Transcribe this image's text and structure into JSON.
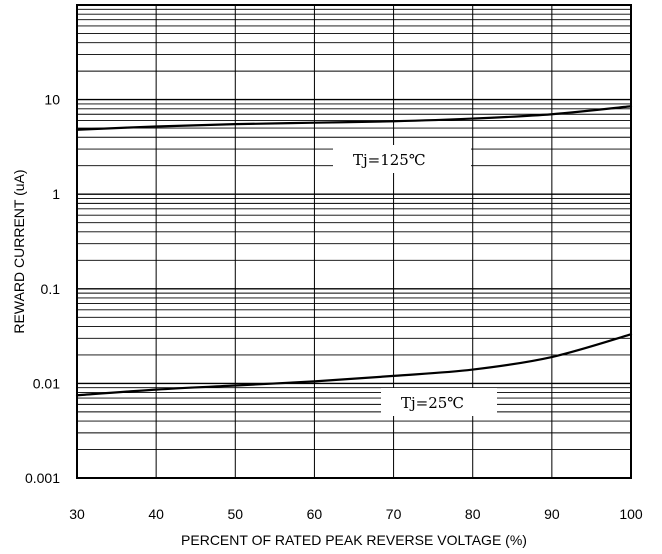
{
  "chart_data": {
    "type": "line",
    "title": "",
    "xlabel": "PERCENT OF RATED PEAK REVERSE VOLTAGE (%)",
    "ylabel": "REWARD CURRENT (uA)",
    "xlim": [
      30,
      100
    ],
    "ylim": [
      0.001,
      100
    ],
    "yscale": "log",
    "grid": true,
    "x_ticks": [
      30,
      40,
      50,
      60,
      70,
      80,
      90,
      100
    ],
    "x_tick_labels": [
      "30",
      "40",
      "50",
      "60",
      "70",
      "80",
      "90",
      "100"
    ],
    "y_ticks": [
      0.001,
      0.01,
      0.1,
      1,
      10
    ],
    "y_tick_labels": [
      "0.001",
      "0.01",
      "0.1",
      "1",
      "10"
    ],
    "series": [
      {
        "label": "Tj=125℃",
        "x": [
          30,
          40,
          50,
          60,
          70,
          80,
          90,
          100
        ],
        "y": [
          4.8,
          5.2,
          5.5,
          5.7,
          5.9,
          6.3,
          7.0,
          8.5
        ]
      },
      {
        "label": "Tj=25℃",
        "x": [
          30,
          40,
          50,
          60,
          70,
          80,
          90,
          100
        ],
        "y": [
          0.0075,
          0.0086,
          0.0095,
          0.0105,
          0.012,
          0.014,
          0.019,
          0.033
        ]
      }
    ],
    "colors": {
      "line": "#000000",
      "grid": "#000000",
      "background": "#ffffff"
    }
  }
}
